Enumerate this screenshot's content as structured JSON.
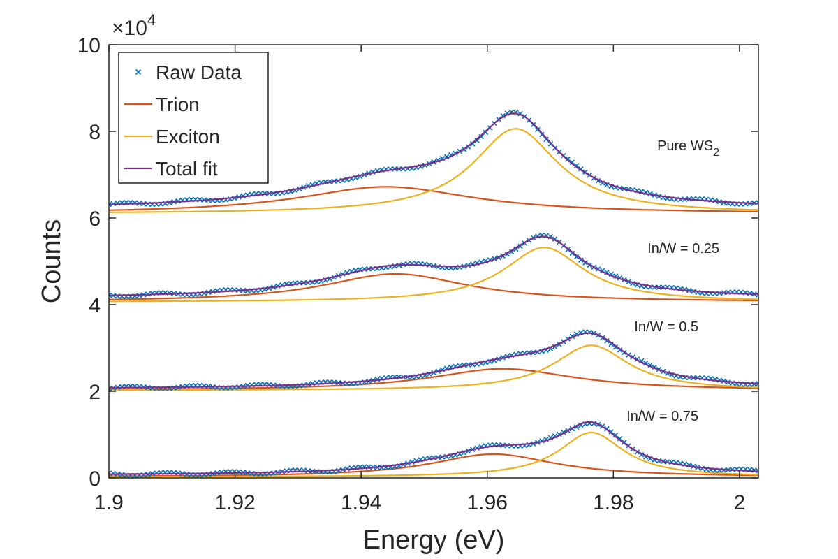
{
  "chart_data": {
    "type": "line",
    "title": "",
    "xlabel": "Energy (eV)",
    "ylabel": "Counts",
    "xlim": [
      1.9,
      2.003
    ],
    "ylim": [
      0,
      100000
    ],
    "y_exponent_label": "×10",
    "y_exponent_power": "4",
    "x_ticks": [
      1.9,
      1.92,
      1.94,
      1.96,
      1.98,
      2.0
    ],
    "x_tick_labels": [
      "1.9",
      "1.92",
      "1.94",
      "1.96",
      "1.98",
      "2"
    ],
    "y_ticks": [
      0,
      20000,
      40000,
      60000,
      80000,
      100000
    ],
    "y_tick_labels": [
      "0",
      "2",
      "4",
      "6",
      "8",
      "10"
    ],
    "grid": false,
    "legend": {
      "placement": "top-left",
      "entries": [
        {
          "label": "Raw Data",
          "marker": "x",
          "color": "#0072BD"
        },
        {
          "label": "Trion",
          "marker": "line",
          "color": "#D95319"
        },
        {
          "label": "Exciton",
          "marker": "line",
          "color": "#EDB120"
        },
        {
          "label": "Total fit",
          "marker": "line",
          "color": "#7E2F8E"
        }
      ]
    },
    "colors": {
      "raw": "#0072BD",
      "trion": "#D95319",
      "exciton": "#EDB120",
      "total": "#7E2F8E"
    },
    "series": [
      {
        "annotation": "Pure WS",
        "annotation_sub": "2",
        "baseline": 61000,
        "offset": 62000,
        "trion": {
          "center": 1.944,
          "amplitude": 6200,
          "width": 0.034
        },
        "exciton": {
          "center": 1.9645,
          "amplitude": 19600,
          "width": 0.0165
        }
      },
      {
        "annotation": "In/W = 0.25",
        "annotation_sub": "",
        "baseline": 40600,
        "offset": 41400,
        "trion": {
          "center": 1.9455,
          "amplitude": 6500,
          "width": 0.028
        },
        "exciton": {
          "center": 1.969,
          "amplitude": 12600,
          "width": 0.0155
        }
      },
      {
        "annotation": "In/W = 0.5",
        "annotation_sub": "",
        "baseline": 20200,
        "offset": 20500,
        "trion": {
          "center": 1.9625,
          "amplitude": 5000,
          "width": 0.028
        },
        "exciton": {
          "center": 1.9765,
          "amplitude": 10400,
          "width": 0.0145
        }
      },
      {
        "annotation": "In/W = 0.75",
        "annotation_sub": "",
        "baseline": 200,
        "offset": 600,
        "trion": {
          "center": 1.961,
          "amplitude": 5300,
          "width": 0.024
        },
        "exciton": {
          "center": 1.9765,
          "amplitude": 10300,
          "width": 0.0125
        }
      }
    ]
  }
}
